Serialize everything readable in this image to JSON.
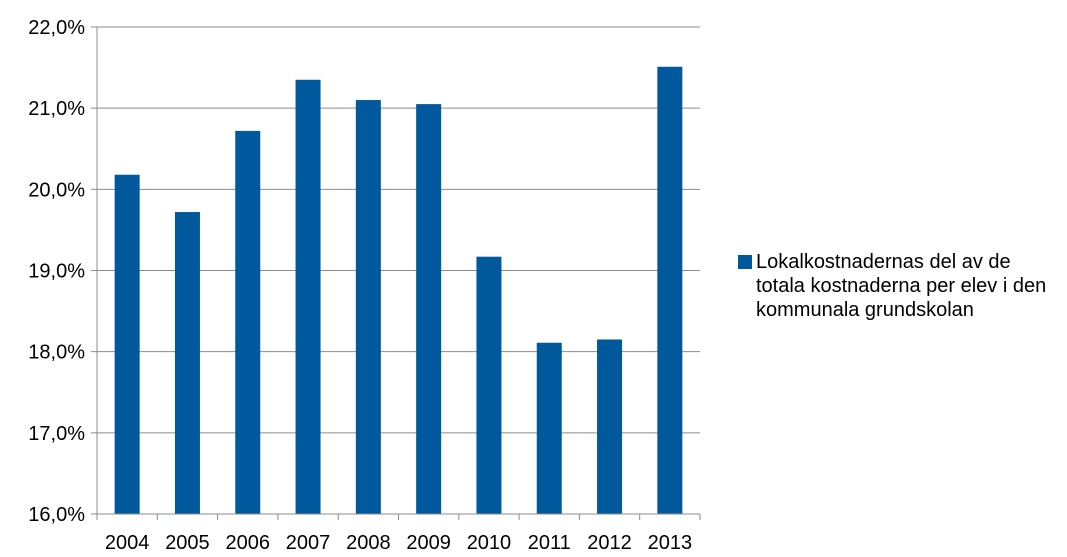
{
  "chart_data": {
    "type": "bar",
    "categories": [
      "2004",
      "2005",
      "2006",
      "2007",
      "2008",
      "2009",
      "2010",
      "2011",
      "2012",
      "2013"
    ],
    "series": [
      {
        "name": "Lokalkostnadernas del av de totala kostnaderna per elev i den kommunala grundskolan",
        "values": [
          20.18,
          19.72,
          20.72,
          21.35,
          21.1,
          21.05,
          19.17,
          18.11,
          18.15,
          21.51
        ],
        "color": "#00599c"
      }
    ],
    "ylim": [
      16,
      22
    ],
    "yticks": [
      16,
      17,
      18,
      19,
      20,
      21,
      22
    ],
    "ytick_labels": [
      "16,0%",
      "17,0%",
      "18,0%",
      "19,0%",
      "20,0%",
      "21,0%",
      "22,0%"
    ],
    "grid": true,
    "legend_position": "right",
    "colors": {
      "bar": "#00599c",
      "grid": "#8c8c8c",
      "axis": "#8c8c8c"
    }
  }
}
